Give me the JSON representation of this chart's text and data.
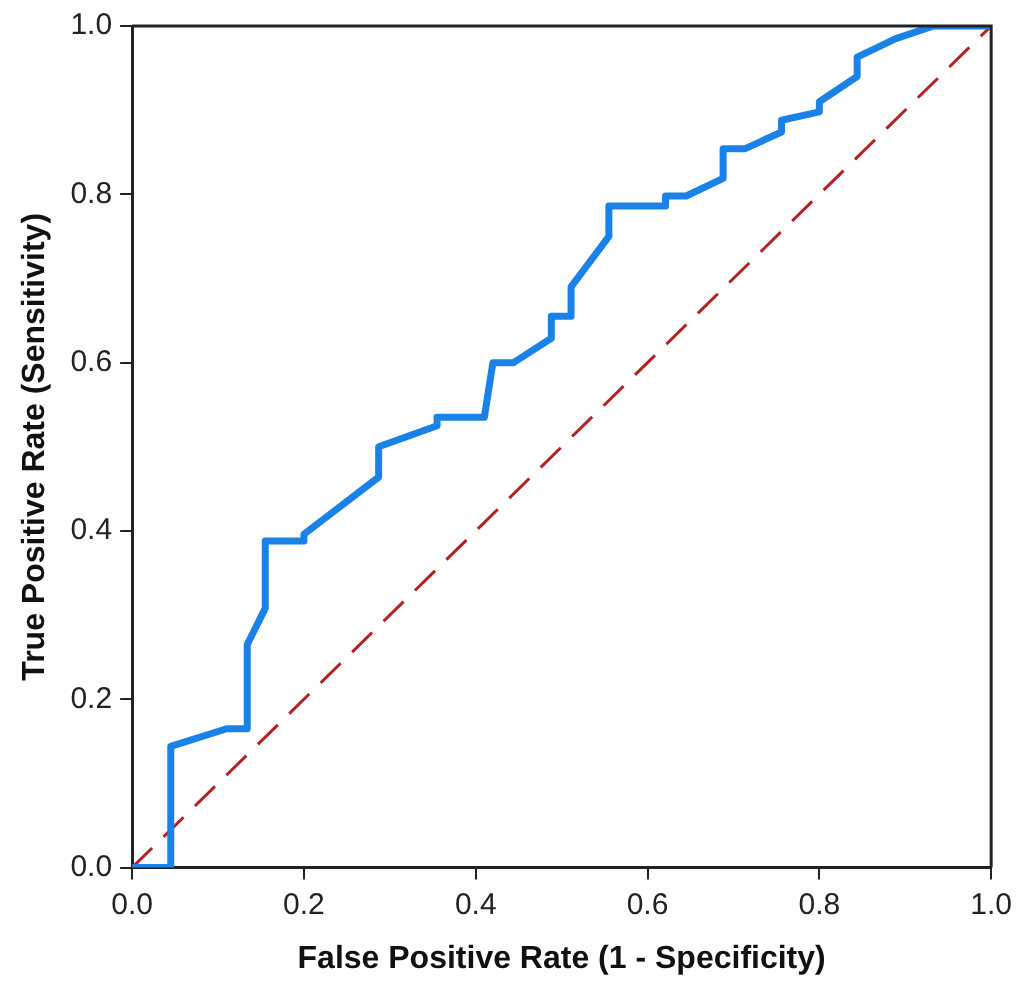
{
  "chart_data": {
    "type": "line",
    "xlabel": "False Positive Rate (1 - Specificity)",
    "ylabel": "True Positive Rate (Sensitivity)",
    "xlim": [
      0,
      1
    ],
    "ylim": [
      0,
      1
    ],
    "xticks": [
      {
        "value": 0,
        "label": "0.0"
      },
      {
        "value": 0.2,
        "label": "0.2"
      },
      {
        "value": 0.4,
        "label": "0.4"
      },
      {
        "value": 0.6,
        "label": "0.6"
      },
      {
        "value": 0.8,
        "label": "0.8"
      },
      {
        "value": 1,
        "label": "1.0"
      }
    ],
    "yticks": [
      {
        "value": 0,
        "label": "0.0"
      },
      {
        "value": 0.2,
        "label": "0.2"
      },
      {
        "value": 0.4,
        "label": "0.4"
      },
      {
        "value": 0.6,
        "label": "0.6"
      },
      {
        "value": 0.8,
        "label": "0.8"
      },
      {
        "value": 1,
        "label": "1.0"
      }
    ],
    "grid": false,
    "legend": false,
    "marker": "none",
    "series": [
      {
        "color": "#1a82e6",
        "line_style": "solid",
        "x": [
          0,
          0.045,
          0.045,
          0.11,
          0.134,
          0.134,
          0.155,
          0.155,
          0.2,
          0.2,
          0.287,
          0.287,
          0.355,
          0.355,
          0.41,
          0.42,
          0.444,
          0.488,
          0.488,
          0.511,
          0.511,
          0.555,
          0.555,
          0.621,
          0.621,
          0.645,
          0.688,
          0.688,
          0.713,
          0.756,
          0.756,
          0.8,
          0.8,
          0.844,
          0.844,
          0.889,
          0.933,
          1
        ],
        "values": [
          0,
          0,
          0.144,
          0.165,
          0.165,
          0.265,
          0.308,
          0.388,
          0.388,
          0.396,
          0.464,
          0.5,
          0.525,
          0.535,
          0.535,
          0.6,
          0.6,
          0.629,
          0.655,
          0.655,
          0.69,
          0.75,
          0.786,
          0.786,
          0.798,
          0.798,
          0.819,
          0.854,
          0.854,
          0.874,
          0.888,
          0.898,
          0.91,
          0.94,
          0.963,
          0.985,
          1,
          1
        ]
      },
      {
        "color": "#b22222",
        "line_style": "dashed",
        "x": [
          0,
          1
        ],
        "values": [
          0,
          1
        ]
      }
    ]
  }
}
